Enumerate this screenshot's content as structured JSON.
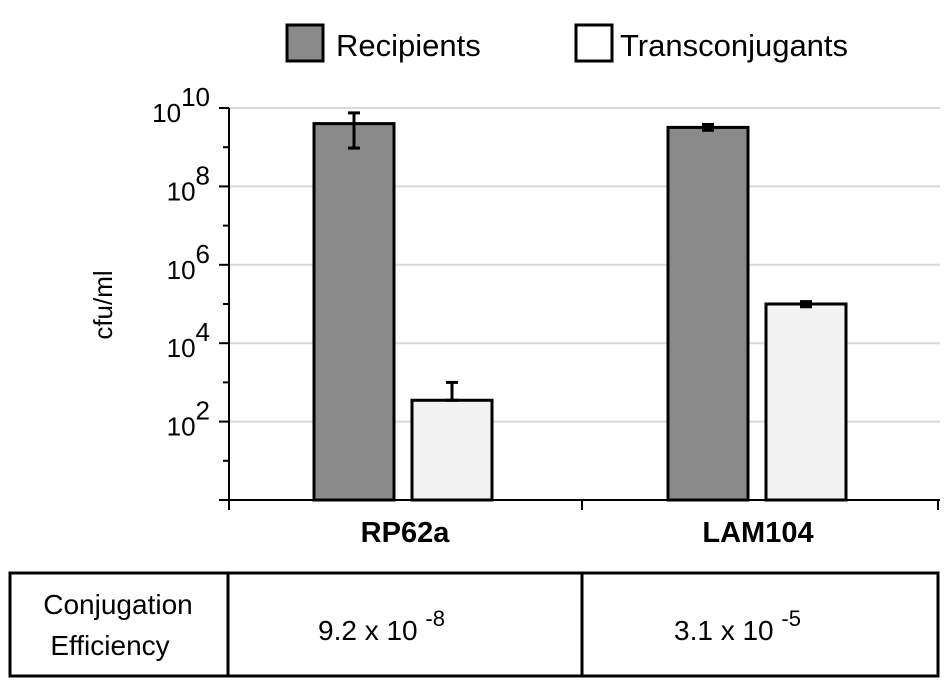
{
  "chart_data": {
    "type": "bar",
    "yscale": "log",
    "ylabel": "cfu/ml",
    "ylim": [
      1,
      10000000000
    ],
    "yticks": [
      {
        "base": "10",
        "exp": "2",
        "value": 100
      },
      {
        "base": "10",
        "exp": "4",
        "value": 10000
      },
      {
        "base": "10",
        "exp": "6",
        "value": 1000000
      },
      {
        "base": "10",
        "exp": "8",
        "value": 100000000
      },
      {
        "base": "10",
        "exp": "10",
        "value": 10000000000
      }
    ],
    "categories": [
      "RP62a",
      "LAM104"
    ],
    "legend_position": "top",
    "grid": true,
    "series": [
      {
        "name": "Recipients",
        "color": "#8a8a8a",
        "values": [
          4000000000,
          3200000000
        ],
        "error_low": [
          950000000,
          2700000000
        ],
        "error_high": [
          7500000000,
          3800000000
        ]
      },
      {
        "name": "Transconjugants",
        "color": "#f2f2f2",
        "values": [
          350,
          100000
        ],
        "error_low": [
          350,
          85000
        ],
        "error_high": [
          1000,
          115000
        ]
      }
    ]
  },
  "table": {
    "row_label_line1": "Conjugation",
    "row_label_line2": "Efficiency",
    "cells": [
      {
        "mantissa": "9.2 x 10",
        "exp": "-8"
      },
      {
        "mantissa": "3.1 x 10",
        "exp": "-5"
      }
    ]
  }
}
